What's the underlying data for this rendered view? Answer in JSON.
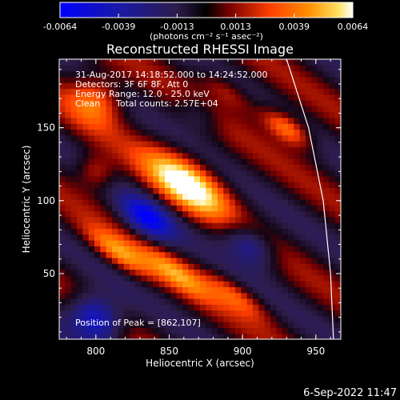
{
  "chart_data": {
    "type": "heatmap",
    "title": "Reconstructed RHESSI Image",
    "xlabel": "Heliocentric X (arcsec)",
    "ylabel": "Heliocentric Y (arcsec)",
    "xlim": [
      775,
      967
    ],
    "ylim": [
      5,
      197
    ],
    "x_ticks": [
      800,
      850,
      900,
      950
    ],
    "y_ticks": [
      50,
      100,
      150
    ],
    "colorbar": {
      "range": [
        -0.0064,
        0.0064
      ],
      "ticks": [
        "-0.0064",
        "-0.0039",
        "-0.0013",
        "0.0013",
        "0.0039",
        "0.0064"
      ],
      "unit_label": "(photons cm⁻² s⁻¹ asec⁻²)"
    },
    "annotations": {
      "time_range": "31-Aug-2017 14:18:52.000 to 14:24:52.000",
      "detectors": "Detectors: 3F 6F 8F, Att 0",
      "energy": "Energy Range: 12.0 - 25.0 keV",
      "method": "Clean",
      "counts": "Total counts: 2.57E+04",
      "peak": "Position of Peak = [862,107]"
    },
    "peak": {
      "x": 862,
      "y": 107
    },
    "limb_arc": [
      [
        930,
        197
      ],
      [
        945,
        150
      ],
      [
        955,
        100
      ],
      [
        960,
        50
      ],
      [
        962,
        5
      ]
    ],
    "sources": [
      {
        "x": 862,
        "y": 112,
        "sigma_major": 23,
        "sigma_minor": 11,
        "angle_deg": -35,
        "amp": 0.0064
      },
      {
        "x": 835,
        "y": 88,
        "sigma_major": 14,
        "sigma_minor": 8,
        "angle_deg": -35,
        "amp": -0.0052
      },
      {
        "x": 905,
        "y": 70,
        "sigma_major": 14,
        "sigma_minor": 8,
        "angle_deg": -35,
        "amp": -0.004
      },
      {
        "x": 800,
        "y": 20,
        "sigma_major": 14,
        "sigma_minor": 10,
        "angle_deg": -35,
        "amp": -0.006
      },
      {
        "x": 800,
        "y": 170,
        "sigma_major": 14,
        "sigma_minor": 12,
        "angle_deg": -35,
        "amp": 0.004
      },
      {
        "x": 930,
        "y": 150,
        "sigma_major": 14,
        "sigma_minor": 6,
        "angle_deg": -35,
        "amp": 0.005
      },
      {
        "x": 815,
        "y": 65,
        "sigma_major": 18,
        "sigma_minor": 6,
        "angle_deg": -35,
        "amp": 0.004
      },
      {
        "x": 855,
        "y": 50,
        "sigma_major": 20,
        "sigma_minor": 6,
        "angle_deg": -35,
        "amp": 0.0035
      },
      {
        "x": 895,
        "y": 35,
        "sigma_major": 18,
        "sigma_minor": 6,
        "angle_deg": -35,
        "amp": 0.003
      },
      {
        "x": 800,
        "y": 120,
        "sigma_major": 10,
        "sigma_minor": 8,
        "angle_deg": -35,
        "amp": 0.003
      },
      {
        "x": 890,
        "y": 175,
        "sigma_major": 16,
        "sigma_minor": 6,
        "angle_deg": -35,
        "amp": 0.0025
      },
      {
        "x": 870,
        "y": 160,
        "sigma_major": 12,
        "sigma_minor": 7,
        "angle_deg": -35,
        "amp": -0.002
      }
    ],
    "stripe_amp": 0.0016,
    "stripe_period": 52,
    "stripe_angle_deg": -35
  },
  "footer_date": "6-Sep-2022 11:47"
}
